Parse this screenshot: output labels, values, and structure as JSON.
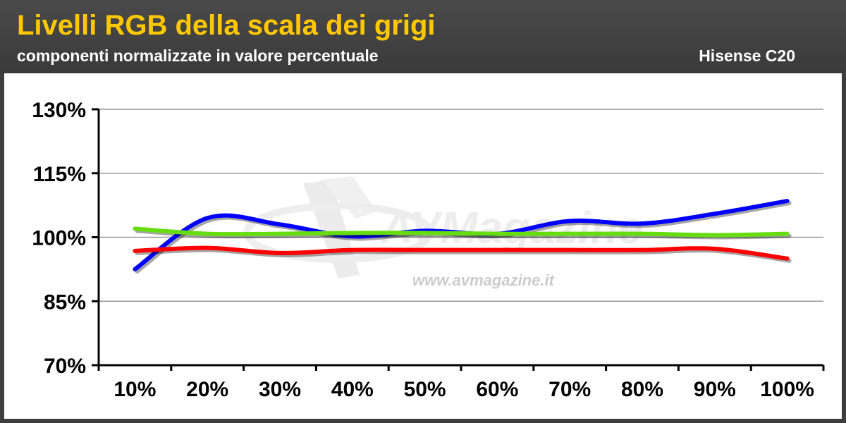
{
  "header": {
    "title": "Livelli RGB della scala dei grigi",
    "subtitle": "componenti normalizzate in valore percentuale",
    "model": "Hisense C20"
  },
  "watermark": {
    "brand": "AVMagazine",
    "url": "www.avmagazine.it"
  },
  "colors": {
    "header_bg": "#3d3d3d",
    "title": "#ffc800",
    "red": "#ff0000",
    "green": "#66dd11",
    "blue": "#0000ff"
  },
  "chart_data": {
    "type": "line",
    "title": "Livelli RGB della scala dei grigi",
    "subtitle": "componenti normalizzate in valore percentuale",
    "categories": [
      "10%",
      "20%",
      "30%",
      "40%",
      "50%",
      "60%",
      "70%",
      "80%",
      "90%",
      "100%"
    ],
    "ylim": [
      70,
      130
    ],
    "yticks": [
      70,
      85,
      100,
      115,
      130
    ],
    "ytick_labels": [
      "70%",
      "85%",
      "100%",
      "115%",
      "130%"
    ],
    "grid": true,
    "series": [
      {
        "color": "#0000ff",
        "values": [
          92.5,
          104.5,
          103.0,
          100.2,
          101.5,
          100.8,
          103.8,
          103.2,
          105.5,
          108.5
        ]
      },
      {
        "color": "#66dd11",
        "values": [
          102.0,
          100.8,
          100.8,
          101.0,
          101.0,
          100.8,
          100.8,
          100.8,
          100.5,
          100.8
        ]
      },
      {
        "color": "#ff0000",
        "values": [
          96.8,
          97.5,
          96.3,
          97.0,
          97.0,
          97.0,
          97.0,
          97.0,
          97.3,
          95.0
        ]
      }
    ]
  }
}
